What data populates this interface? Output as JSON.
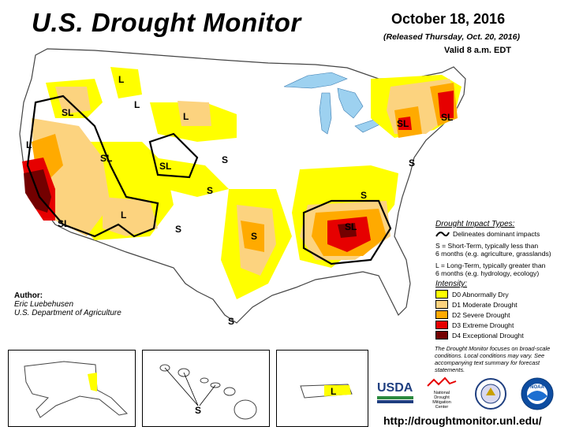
{
  "title": "U.S. Drought Monitor",
  "date": "October 18, 2016",
  "released": "(Released Thursday, Oct. 20, 2016)",
  "valid": "Valid 8 a.m. EDT",
  "map_labels": {
    "sl": "SL",
    "s": "S",
    "l": "L"
  },
  "legend": {
    "impact_header": "Drought Impact Types:",
    "delineates": "Delineates dominant impacts",
    "s_def_1": "S = Short-Term, typically less than",
    "s_def_2": "6 months (e.g. agriculture, grasslands)",
    "l_def_1": "L = Long-Term, typically greater than",
    "l_def_2": "6 months (e.g. hydrology, ecology)",
    "intensity_header": "Intensity:",
    "categories": [
      {
        "label": "D0 Abnormally Dry",
        "color": "#ffff00"
      },
      {
        "label": "D1 Moderate Drought",
        "color": "#fcd37f"
      },
      {
        "label": "D2 Severe Drought",
        "color": "#ffaa00"
      },
      {
        "label": "D3 Extreme Drought",
        "color": "#e60000"
      },
      {
        "label": "D4 Exceptional Drought",
        "color": "#730000"
      }
    ]
  },
  "author": {
    "header": "Author:",
    "name": "Eric Luebehusen",
    "org": "U.S. Department of Agriculture"
  },
  "note": "The Drought Monitor focuses on broad-scale conditions. Local conditions may vary. See accompanying text summary for forecast statements.",
  "logos": {
    "usda": "USDA",
    "ndmc_1": "National",
    "ndmc_2": "Drought",
    "ndmc_3": "Mitigation",
    "ndmc_4": "Center",
    "noaa": "NOAA"
  },
  "url": "http://droughtmonitor.unl.edu/",
  "colors": {
    "water": "#9dd1f0",
    "d0": "#ffff00",
    "d1": "#fcd37f",
    "d2": "#ffaa00",
    "d3": "#e60000",
    "d4": "#730000"
  }
}
